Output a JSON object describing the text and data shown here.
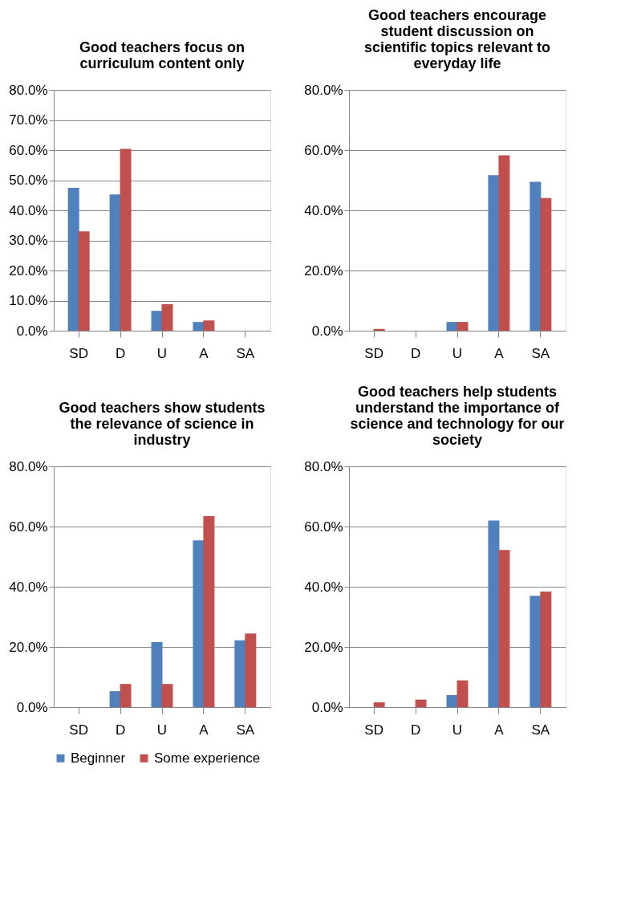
{
  "chart_data": [
    {
      "type": "bar",
      "title": "Good teachers focus on curriculum content only",
      "categories": [
        "SD",
        "D",
        "U",
        "A",
        "SA"
      ],
      "series": [
        {
          "name": "Beginner",
          "color": "#4f81bd",
          "values": [
            47.5,
            45.3,
            6.6,
            2.9,
            0
          ]
        },
        {
          "name": "Some experience",
          "color": "#c0504d",
          "values": [
            33.0,
            60.4,
            8.8,
            3.4,
            0
          ]
        }
      ],
      "ylim": [
        0,
        80
      ],
      "yticks": [
        {
          "value": 0,
          "label": "0.0%"
        },
        {
          "value": 10,
          "label": "10.0%"
        },
        {
          "value": 20,
          "label": "20.0%"
        },
        {
          "value": 30,
          "label": "30.0%"
        },
        {
          "value": 40,
          "label": "40.0%"
        },
        {
          "value": 50,
          "label": "50.0%"
        },
        {
          "value": 60,
          "label": "60.0%"
        },
        {
          "value": 70,
          "label": "70.0%"
        },
        {
          "value": 80,
          "label": "80.0%"
        }
      ],
      "grid": "y",
      "legend": "bottom"
    },
    {
      "type": "bar",
      "title": "Good teachers encourage student discussion on scientific topics relevant to everyday life",
      "categories": [
        "SD",
        "D",
        "U",
        "A",
        "SA"
      ],
      "series": [
        {
          "name": "Beginner",
          "color": "#4f81bd",
          "values": [
            0,
            0,
            2.9,
            51.7,
            49.5
          ]
        },
        {
          "name": "Some experience",
          "color": "#c0504d",
          "values": [
            0.6,
            0,
            2.9,
            58.3,
            44.1
          ]
        }
      ],
      "ylim": [
        0,
        80
      ],
      "yticks": [
        {
          "value": 0,
          "label": "0.0%"
        },
        {
          "value": 20,
          "label": "20.0%"
        },
        {
          "value": 40,
          "label": "40.0%"
        },
        {
          "value": 60,
          "label": "60.0%"
        },
        {
          "value": 80,
          "label": "80.0%"
        }
      ],
      "grid": "y",
      "legend": "bottom"
    },
    {
      "type": "bar",
      "title": "Good teachers show students the relevance of science in industry",
      "categories": [
        "SD",
        "D",
        "U",
        "A",
        "SA"
      ],
      "series": [
        {
          "name": "Beginner",
          "color": "#4f81bd",
          "values": [
            0,
            5.3,
            21.6,
            55.4,
            22.2
          ]
        },
        {
          "name": "Some experience",
          "color": "#c0504d",
          "values": [
            0,
            7.7,
            7.7,
            63.5,
            24.5
          ]
        }
      ],
      "ylim": [
        0,
        80
      ],
      "yticks": [
        {
          "value": 0,
          "label": "0.0%"
        },
        {
          "value": 20,
          "label": "20.0%"
        },
        {
          "value": 40,
          "label": "40.0%"
        },
        {
          "value": 60,
          "label": "60.0%"
        },
        {
          "value": 80,
          "label": "80.0%"
        }
      ],
      "grid": "y",
      "legend": "bottom"
    },
    {
      "type": "bar",
      "title": "Good teachers help students understand the importance of science and technology for our society",
      "categories": [
        "SD",
        "D",
        "U",
        "A",
        "SA"
      ],
      "series": [
        {
          "name": "Beginner",
          "color": "#4f81bd",
          "values": [
            0,
            0,
            4.0,
            62.0,
            37.0
          ]
        },
        {
          "name": "Some experience",
          "color": "#c0504d",
          "values": [
            1.6,
            2.5,
            8.9,
            52.2,
            38.4
          ]
        }
      ],
      "ylim": [
        0,
        80
      ],
      "yticks": [
        {
          "value": 0,
          "label": "0.0%"
        },
        {
          "value": 20,
          "label": "20.0%"
        },
        {
          "value": 40,
          "label": "40.0%"
        },
        {
          "value": 60,
          "label": "60.0%"
        },
        {
          "value": 80,
          "label": "80.0%"
        }
      ],
      "grid": "y",
      "legend": "bottom"
    }
  ]
}
